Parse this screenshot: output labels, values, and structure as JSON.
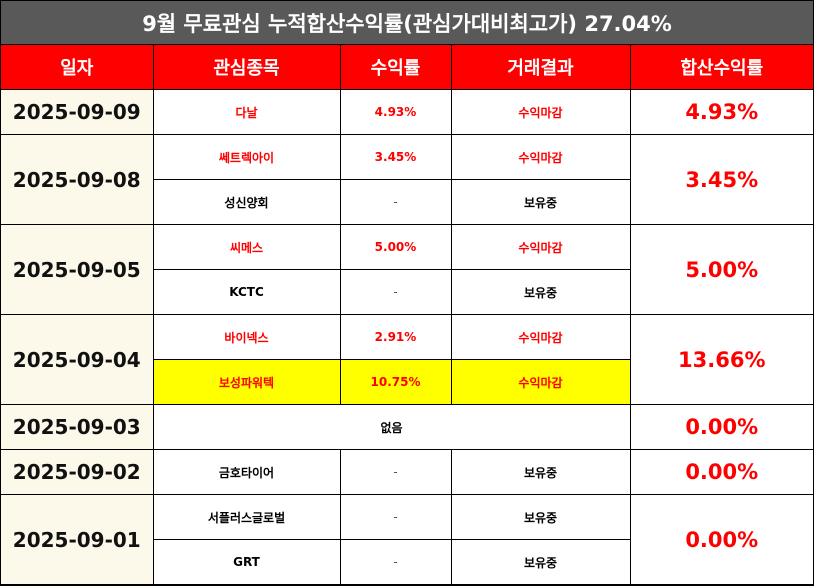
{
  "title": "9월 무료관심 누적합산수익률(관심가대비최고가) 27.04%",
  "headers": {
    "date": "일자",
    "stock": "관심종목",
    "rate": "수익률",
    "result": "거래결과",
    "total": "합산수익률"
  },
  "groups": [
    {
      "date": "2025-09-09",
      "total": "4.93%",
      "rows": [
        {
          "stock": "다날",
          "rate": "4.93%",
          "result": "수익마감",
          "highlight": false
        }
      ]
    },
    {
      "date": "2025-09-08",
      "total": "3.45%",
      "rows": [
        {
          "stock": "쎄트렉아이",
          "rate": "3.45%",
          "result": "수익마감",
          "highlight": false
        },
        {
          "stock": "성신양회",
          "rate": "-",
          "result": "보유중",
          "highlight": false
        }
      ]
    },
    {
      "date": "2025-09-05",
      "total": "5.00%",
      "rows": [
        {
          "stock": "씨메스",
          "rate": "5.00%",
          "result": "수익마감",
          "highlight": false
        },
        {
          "stock": "KCTC",
          "rate": "-",
          "result": "보유중",
          "highlight": false
        }
      ]
    },
    {
      "date": "2025-09-04",
      "total": "13.66%",
      "rows": [
        {
          "stock": "바이넥스",
          "rate": "2.91%",
          "result": "수익마감",
          "highlight": false
        },
        {
          "stock": "보성파워텍",
          "rate": "10.75%",
          "result": "수익마감",
          "highlight": true
        }
      ]
    },
    {
      "date": "2025-09-03",
      "total": "0.00%",
      "none_text": "없음",
      "rows": []
    },
    {
      "date": "2025-09-02",
      "total": "0.00%",
      "rows": [
        {
          "stock": "금호타이어",
          "rate": "-",
          "result": "보유중",
          "highlight": false
        }
      ]
    },
    {
      "date": "2025-09-01",
      "total": "0.00%",
      "rows": [
        {
          "stock": "서플러스글로벌",
          "rate": "-",
          "result": "보유중",
          "highlight": false
        },
        {
          "stock": "GRT",
          "rate": "-",
          "result": "보유중",
          "highlight": false
        }
      ]
    }
  ],
  "colors": {
    "banner_bg": "#595959",
    "header_bg": "#ff0000",
    "profit_text": "#ff0000",
    "date_bg": "#fdf9ea",
    "highlight_bg": "#ffff00"
  }
}
